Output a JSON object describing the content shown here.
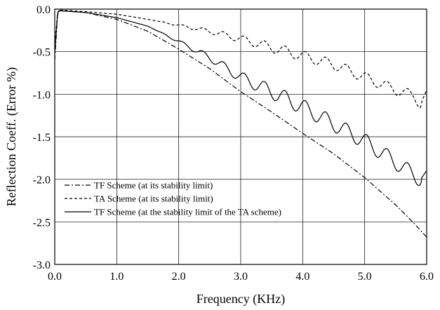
{
  "chart_data": {
    "type": "line",
    "title": "",
    "xlabel": "Frequency (KHz)",
    "ylabel": "Reflection Coeff. (Error %)",
    "xlim": [
      0.0,
      6.0
    ],
    "ylim": [
      -3.0,
      0.0
    ],
    "xticks": [
      "0.0",
      "1.0",
      "2.0",
      "3.0",
      "4.0",
      "5.0",
      "6.0"
    ],
    "yticks": [
      "0.0",
      "-0.5",
      "-1.0",
      "-1.5",
      "-2.0",
      "-2.5",
      "-3.0"
    ],
    "grid": true,
    "legend_position": "bottom-left",
    "series": [
      {
        "name": "TF Scheme (at its stability limit)",
        "style": "dash-dot",
        "x": [
          0.0,
          0.05,
          0.1,
          0.5,
          1.0,
          1.5,
          2.0,
          2.5,
          3.0,
          3.5,
          4.0,
          4.5,
          5.0,
          5.5,
          5.8,
          6.0
        ],
        "y": [
          -0.6,
          -0.03,
          -0.02,
          -0.04,
          -0.12,
          -0.26,
          -0.47,
          -0.7,
          -0.97,
          -1.21,
          -1.46,
          -1.7,
          -1.98,
          -2.3,
          -2.52,
          -2.68
        ]
      },
      {
        "name": "TA Scheme (at its stability limit)",
        "style": "dashed",
        "x": [
          0.0,
          0.05,
          0.1,
          0.5,
          1.0,
          1.5,
          2.0,
          2.5,
          3.0,
          3.5,
          4.0,
          4.5,
          5.0,
          5.5,
          5.8,
          5.9,
          6.0
        ],
        "y": [
          -0.4,
          -0.02,
          -0.01,
          -0.03,
          -0.06,
          -0.12,
          -0.19,
          -0.26,
          -0.35,
          -0.45,
          -0.55,
          -0.65,
          -0.8,
          -0.95,
          -1.02,
          -1.12,
          -0.95
        ],
        "ripple_amplitude": 0.06
      },
      {
        "name": "TF Scheme (at the stability limit of the TA scheme)",
        "style": "solid",
        "x": [
          0.0,
          0.05,
          0.1,
          0.5,
          1.0,
          1.5,
          2.0,
          2.5,
          3.0,
          3.5,
          4.0,
          4.5,
          5.0,
          5.5,
          5.9,
          6.0
        ],
        "y": [
          -0.5,
          -0.02,
          -0.02,
          -0.04,
          -0.1,
          -0.2,
          -0.38,
          -0.57,
          -0.8,
          -0.97,
          -1.15,
          -1.35,
          -1.55,
          -1.8,
          -2.0,
          -1.9
        ],
        "ripple_amplitude": 0.09
      }
    ]
  }
}
